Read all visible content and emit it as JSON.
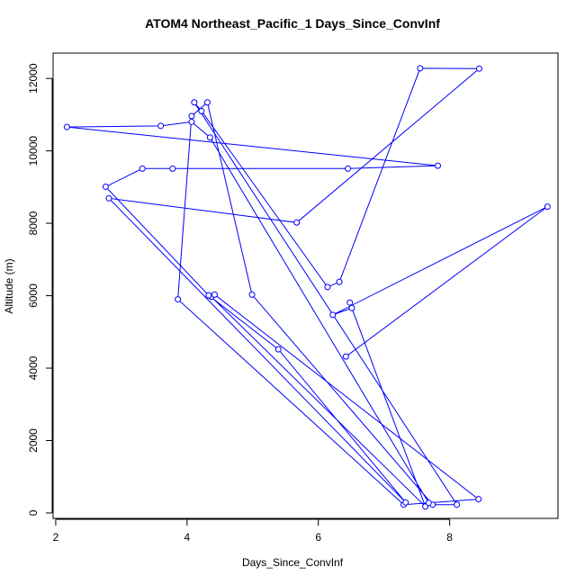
{
  "chart_data": {
    "type": "line",
    "title": "ATOM4 Northeast_Pacific_1 Days_Since_ConvInf",
    "xlabel": "Days_Since_ConvInf",
    "ylabel": "Altitude (m)",
    "xlim": [
      1.96,
      9.65
    ],
    "ylim": [
      -150,
      12700
    ],
    "xticks": [
      2,
      4,
      6,
      8
    ],
    "yticks": [
      0,
      2000,
      4000,
      6000,
      8000,
      10000,
      12000
    ],
    "grid": false,
    "legend": "none",
    "line_color": "#0000ff",
    "marker": "open-circle",
    "series": [
      {
        "x": [
          6.42,
          9.49,
          6.22,
          6.51,
          6.48,
          7.63,
          4.37,
          4.42,
          8.44,
          7.3,
          3.86,
          4.07,
          4.31,
          4.99,
          7.74,
          8.11,
          4.11,
          4.22,
          6.14,
          6.32,
          7.55,
          8.45,
          5.67,
          2.81,
          7.33,
          5.39,
          4.33,
          2.76,
          3.32,
          3.78,
          6.45,
          7.82,
          2.17,
          3.6,
          4.07,
          4.35,
          7.68
        ],
        "y": [
          4320,
          8460,
          5470,
          5660,
          5810,
          180,
          5970,
          6030,
          380,
          230,
          5900,
          10960,
          11340,
          6030,
          230,
          230,
          11340,
          11100,
          6240,
          6380,
          12280,
          12270,
          8020,
          8690,
          290,
          4520,
          6010,
          9010,
          9510,
          9510,
          9510,
          9590,
          10660,
          10690,
          10800,
          10370,
          280
        ]
      }
    ]
  }
}
